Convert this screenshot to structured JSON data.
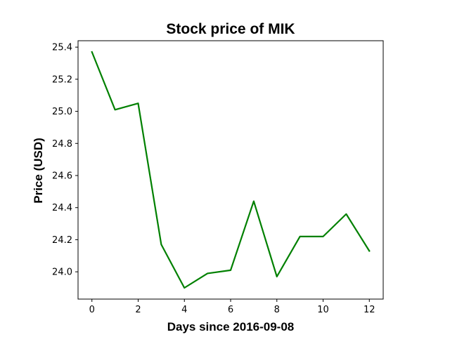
{
  "chart_data": {
    "type": "line",
    "title": "Stock price of MIK",
    "xlabel": "Days since 2016-09-08",
    "ylabel": "Price (USD)",
    "x": [
      0,
      1,
      2,
      3,
      4,
      5,
      6,
      7,
      8,
      9,
      10,
      11,
      12
    ],
    "series": [
      {
        "color": "#008000",
        "values": [
          25.37,
          25.01,
          25.05,
          24.17,
          23.9,
          23.99,
          24.01,
          24.44,
          23.97,
          24.22,
          24.22,
          24.36,
          24.13
        ]
      }
    ],
    "xlim": [
      -0.6,
      12.6
    ],
    "ylim": [
      23.83,
      25.44
    ],
    "xticks": [
      0,
      2,
      4,
      6,
      8,
      10,
      12
    ],
    "xtick_labels": [
      "0",
      "2",
      "4",
      "6",
      "8",
      "10",
      "12"
    ],
    "yticks": [
      24.0,
      24.2,
      24.4,
      24.6,
      24.8,
      25.0,
      25.2,
      25.4
    ],
    "ytick_labels": [
      "24.0",
      "24.2",
      "24.4",
      "24.6",
      "24.8",
      "25.0",
      "25.2",
      "25.4"
    ],
    "grid": false,
    "legend": "none"
  }
}
